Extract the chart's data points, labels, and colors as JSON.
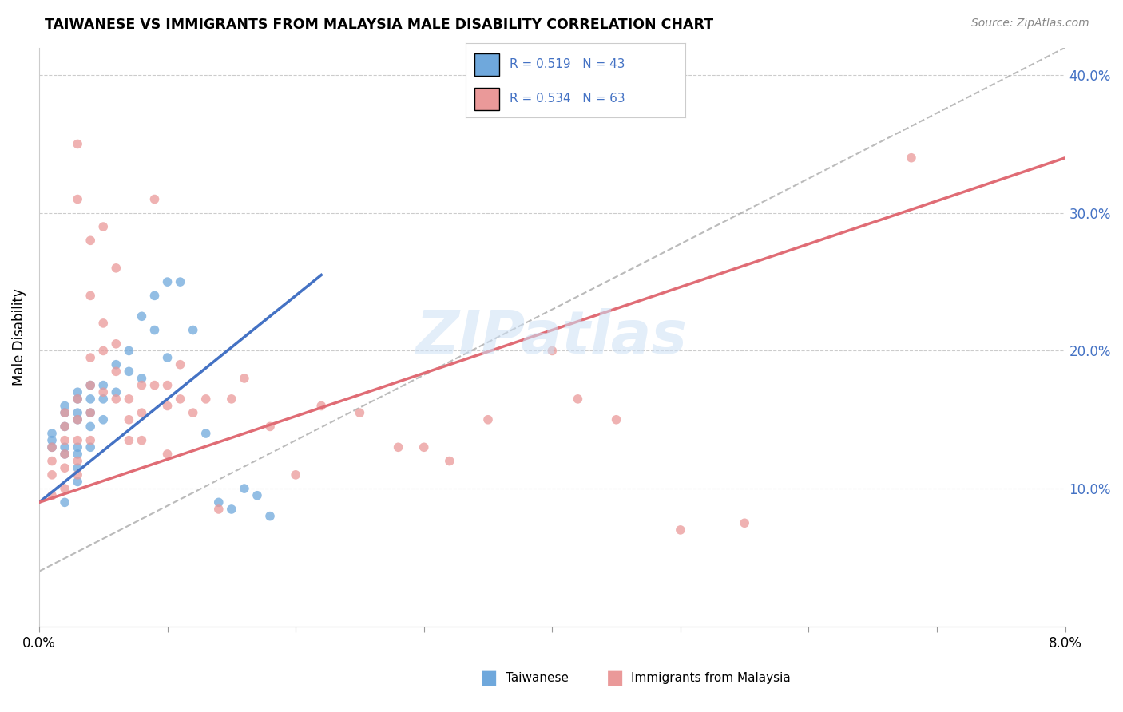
{
  "title": "TAIWANESE VS IMMIGRANTS FROM MALAYSIA MALE DISABILITY CORRELATION CHART",
  "source": "Source: ZipAtlas.com",
  "ylabel": "Male Disability",
  "xlim": [
    0.0,
    0.08
  ],
  "ylim": [
    0.0,
    0.42
  ],
  "taiwanese_R": 0.519,
  "taiwanese_N": 43,
  "malaysia_R": 0.534,
  "malaysia_N": 63,
  "taiwanese_color": "#6fa8dc",
  "malaysia_color": "#ea9999",
  "taiwanese_line_color": "#4472c4",
  "malaysia_line_color": "#e06c75",
  "diagonal_color": "#aaaaaa",
  "watermark": "ZIPatlas",
  "legend_color": "#4472c4",
  "taiwanese_x": [
    0.001,
    0.001,
    0.001,
    0.002,
    0.002,
    0.002,
    0.002,
    0.002,
    0.002,
    0.003,
    0.003,
    0.003,
    0.003,
    0.003,
    0.003,
    0.003,
    0.003,
    0.004,
    0.004,
    0.004,
    0.004,
    0.004,
    0.005,
    0.005,
    0.005,
    0.006,
    0.006,
    0.007,
    0.007,
    0.008,
    0.008,
    0.009,
    0.009,
    0.01,
    0.01,
    0.011,
    0.012,
    0.013,
    0.014,
    0.015,
    0.016,
    0.017,
    0.018
  ],
  "taiwanese_y": [
    0.14,
    0.135,
    0.13,
    0.16,
    0.155,
    0.145,
    0.13,
    0.125,
    0.09,
    0.17,
    0.165,
    0.155,
    0.15,
    0.13,
    0.125,
    0.115,
    0.105,
    0.175,
    0.165,
    0.155,
    0.145,
    0.13,
    0.175,
    0.165,
    0.15,
    0.19,
    0.17,
    0.2,
    0.185,
    0.225,
    0.18,
    0.24,
    0.215,
    0.25,
    0.195,
    0.25,
    0.215,
    0.14,
    0.09,
    0.085,
    0.1,
    0.095,
    0.08
  ],
  "malaysia_x": [
    0.001,
    0.001,
    0.001,
    0.001,
    0.002,
    0.002,
    0.002,
    0.002,
    0.002,
    0.002,
    0.003,
    0.003,
    0.003,
    0.003,
    0.003,
    0.003,
    0.003,
    0.004,
    0.004,
    0.004,
    0.004,
    0.004,
    0.004,
    0.005,
    0.005,
    0.005,
    0.005,
    0.006,
    0.006,
    0.006,
    0.006,
    0.007,
    0.007,
    0.007,
    0.008,
    0.008,
    0.008,
    0.009,
    0.009,
    0.01,
    0.01,
    0.01,
    0.011,
    0.011,
    0.012,
    0.013,
    0.014,
    0.015,
    0.016,
    0.018,
    0.02,
    0.022,
    0.025,
    0.028,
    0.03,
    0.032,
    0.035,
    0.04,
    0.042,
    0.045,
    0.05,
    0.055,
    0.068
  ],
  "malaysia_y": [
    0.13,
    0.12,
    0.11,
    0.095,
    0.155,
    0.145,
    0.135,
    0.125,
    0.115,
    0.1,
    0.35,
    0.31,
    0.165,
    0.15,
    0.135,
    0.12,
    0.11,
    0.28,
    0.24,
    0.195,
    0.175,
    0.155,
    0.135,
    0.29,
    0.22,
    0.2,
    0.17,
    0.26,
    0.205,
    0.185,
    0.165,
    0.165,
    0.15,
    0.135,
    0.175,
    0.155,
    0.135,
    0.31,
    0.175,
    0.175,
    0.16,
    0.125,
    0.19,
    0.165,
    0.155,
    0.165,
    0.085,
    0.165,
    0.18,
    0.145,
    0.11,
    0.16,
    0.155,
    0.13,
    0.13,
    0.12,
    0.15,
    0.2,
    0.165,
    0.15,
    0.07,
    0.075,
    0.34
  ]
}
